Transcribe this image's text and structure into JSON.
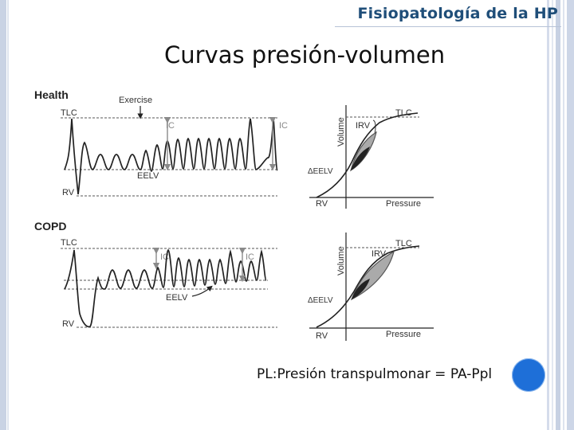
{
  "slide": {
    "header": "Fisiopatología de la HP",
    "title": "Curvas presión-volumen",
    "formula": "PL:Presión transpulmonar = PA-Ppl"
  },
  "figure": {
    "health": {
      "label": "Health",
      "exercise": "Exercise",
      "tlc": "TLC",
      "ic_left": "IC",
      "ic_right": "IC",
      "eelv": "EELV",
      "rv": "RV"
    },
    "copd": {
      "label": "COPD",
      "tlc": "TLC",
      "ic_left": "IC",
      "ic_right": "IC",
      "eelv": "EELV",
      "rv": "RV"
    },
    "pv_health": {
      "volume": "Volume",
      "tlc": "TLC",
      "irv": "IRV",
      "delta_eelv": "ΔEELV",
      "rv": "RV",
      "pressure": "Pressure"
    },
    "pv_copd": {
      "volume": "Volume",
      "tlc": "TLC",
      "irv": "IRV",
      "delta_eelv": "ΔEELV",
      "rv": "RV",
      "pressure": "Pressure"
    }
  },
  "colors": {
    "header": "#1f4e79",
    "circle": "#1e6fd8",
    "trace": "#222222",
    "arrow_gray": "#8a8a8a"
  }
}
